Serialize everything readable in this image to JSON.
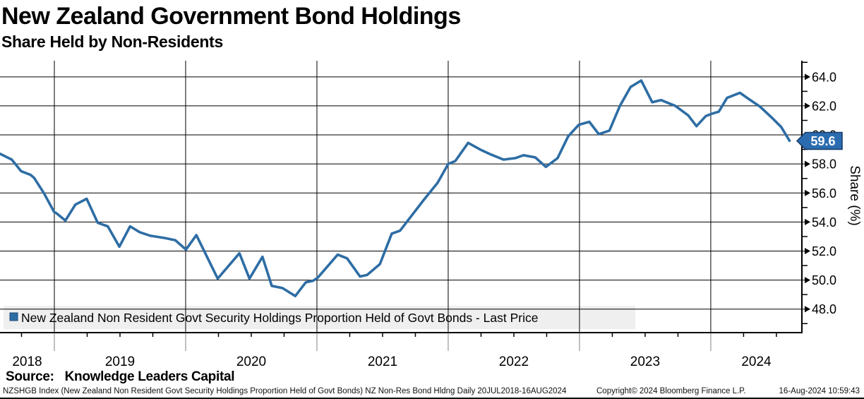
{
  "header": {
    "title": "New Zealand Government Bond Holdings",
    "subtitle": "Share Held by Non-Residents"
  },
  "legend": {
    "label": "New Zealand Non Resident Govt Security Holdings Proportion Held of Govt Bonds - Last Price"
  },
  "last_price": {
    "value": "59.6"
  },
  "colors": {
    "line": "#2e6da4",
    "legend_marker": "#2e6da4",
    "legend_marker_border": "#1c4b7e",
    "badge_fill": "#2b6cb0",
    "badge_border": "#153a66",
    "badge_text": "#ffffff",
    "legend_strip": "#efefef",
    "grid": "#000000",
    "axis": "#000000",
    "sub_axis_gray": "#808080"
  },
  "footer": {
    "source_label": "Source:",
    "source_value": "Knowledge Leaders Capital",
    "descriptor": "NZSHGB Index (New Zealand Non Resident Govt Security Holdings Proportion Held of Govt Bonds) NZ Non-Res Bond Hldng  Daily 20JUL2018-16AUG2024",
    "copyright": "Copyright© 2024 Bloomberg Finance L.P.",
    "timestamp": "16-Aug-2024 10:59:43"
  },
  "chart_data": {
    "type": "line",
    "title": "New Zealand Government Bond Holdings",
    "subtitle": "Share Held by Non-Residents",
    "ylabel": "Share (%)",
    "xlim": [
      2018.586,
      2024.694
    ],
    "ylim": [
      46.38,
      65.11
    ],
    "grid": true,
    "legend_position": "bottom-left",
    "y_major_ticks": [
      {
        "value": 48,
        "label": "48.0"
      },
      {
        "value": 50,
        "label": "50.0"
      },
      {
        "value": 52,
        "label": "52.0"
      },
      {
        "value": 54,
        "label": "54.0"
      },
      {
        "value": 56,
        "label": "56.0"
      },
      {
        "value": 58,
        "label": "58.0"
      },
      {
        "value": 60,
        "label": "60.0"
      },
      {
        "value": 62,
        "label": "62.0"
      },
      {
        "value": 64,
        "label": "64.0"
      }
    ],
    "y_minor_ticks": [
      47,
      49,
      51,
      53,
      55,
      57,
      59,
      61,
      63,
      65
    ],
    "x_year_dividers": [
      2019,
      2020,
      2021,
      2022,
      2023,
      2024
    ],
    "x_year_labels": [
      {
        "label": "2018",
        "center": 2018.793
      },
      {
        "label": "2019",
        "center": 2019.5
      },
      {
        "label": "2020",
        "center": 2020.5
      },
      {
        "label": "2021",
        "center": 2021.5
      },
      {
        "label": "2022",
        "center": 2022.5
      },
      {
        "label": "2023",
        "center": 2023.5
      },
      {
        "label": "2024",
        "center": 2024.347
      }
    ],
    "series": [
      {
        "name": "New Zealand Non Resident Govt Security Holdings Proportion Held of Govt Bonds - Last Price",
        "last_value": 59.6,
        "points": [
          [
            2018.586,
            58.7
          ],
          [
            2018.676,
            58.3
          ],
          [
            2018.747,
            57.5
          ],
          [
            2018.819,
            57.25
          ],
          [
            2018.845,
            57.05
          ],
          [
            2018.92,
            56.0
          ],
          [
            2018.998,
            54.7
          ],
          [
            2019.016,
            54.6
          ],
          [
            2019.084,
            54.1
          ],
          [
            2019.16,
            55.2
          ],
          [
            2019.246,
            55.6
          ],
          [
            2019.33,
            53.95
          ],
          [
            2019.407,
            53.7
          ],
          [
            2019.495,
            52.3
          ],
          [
            2019.577,
            53.7
          ],
          [
            2019.65,
            53.3
          ],
          [
            2019.733,
            53.05
          ],
          [
            2019.84,
            52.9
          ],
          [
            2019.921,
            52.75
          ],
          [
            2020.002,
            52.1
          ],
          [
            2020.082,
            53.1
          ],
          [
            2020.244,
            50.1
          ],
          [
            2020.41,
            51.85
          ],
          [
            2020.486,
            50.1
          ],
          [
            2020.585,
            51.6
          ],
          [
            2020.656,
            49.6
          ],
          [
            2020.737,
            49.45
          ],
          [
            2020.835,
            48.9
          ],
          [
            2020.916,
            49.85
          ],
          [
            2020.97,
            49.95
          ],
          [
            2021.005,
            50.15
          ],
          [
            2021.158,
            51.75
          ],
          [
            2021.23,
            51.5
          ],
          [
            2021.328,
            50.25
          ],
          [
            2021.382,
            50.35
          ],
          [
            2021.48,
            51.1
          ],
          [
            2021.57,
            53.2
          ],
          [
            2021.633,
            53.4
          ],
          [
            2021.812,
            55.5
          ],
          [
            2021.919,
            56.7
          ],
          [
            2022.0,
            58.0
          ],
          [
            2022.054,
            58.2
          ],
          [
            2022.152,
            59.45
          ],
          [
            2022.242,
            59.0
          ],
          [
            2022.313,
            58.7
          ],
          [
            2022.421,
            58.3
          ],
          [
            2022.511,
            58.4
          ],
          [
            2022.574,
            58.6
          ],
          [
            2022.663,
            58.45
          ],
          [
            2022.744,
            57.8
          ],
          [
            2022.833,
            58.4
          ],
          [
            2022.914,
            59.9
          ],
          [
            2022.995,
            60.7
          ],
          [
            2023.075,
            60.9
          ],
          [
            2023.147,
            60.05
          ],
          [
            2023.228,
            60.3
          ],
          [
            2023.308,
            62.0
          ],
          [
            2023.389,
            63.3
          ],
          [
            2023.47,
            63.75
          ],
          [
            2023.554,
            62.25
          ],
          [
            2023.621,
            62.4
          ],
          [
            2023.73,
            62.0
          ],
          [
            2023.828,
            61.35
          ],
          [
            2023.891,
            60.6
          ],
          [
            2023.962,
            61.3
          ],
          [
            2024.007,
            61.45
          ],
          [
            2024.061,
            61.6
          ],
          [
            2024.124,
            62.55
          ],
          [
            2024.222,
            62.9
          ],
          [
            2024.285,
            62.5
          ],
          [
            2024.375,
            61.95
          ],
          [
            2024.464,
            61.2
          ],
          [
            2024.536,
            60.55
          ],
          [
            2024.6,
            59.6
          ]
        ]
      }
    ]
  }
}
